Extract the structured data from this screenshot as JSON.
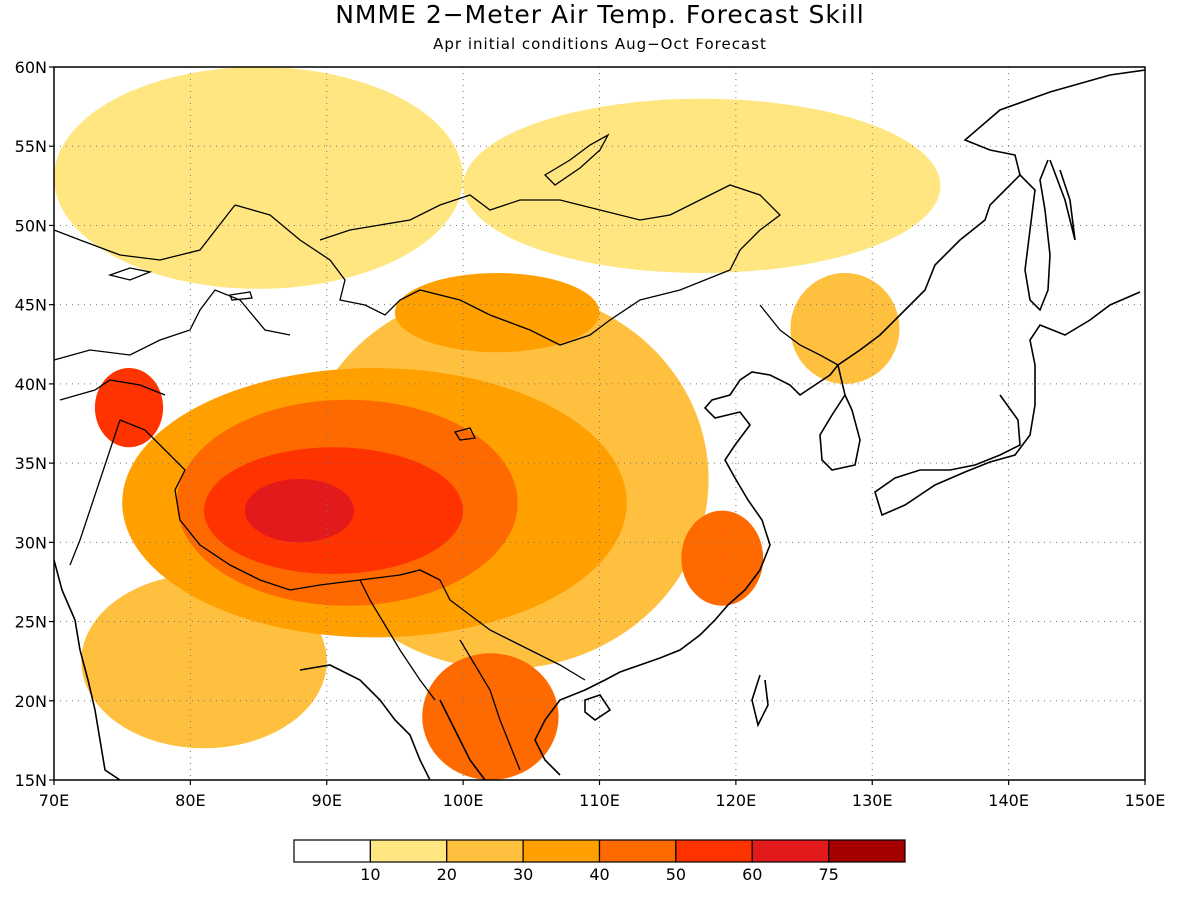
{
  "title": "NMME 2−Meter Air Temp. Forecast Skill",
  "subtitle": "Apr initial conditions  Aug−Oct Forecast",
  "map": {
    "lon_range": [
      70,
      150
    ],
    "lat_range": [
      15,
      60
    ],
    "lon_ticks": [
      "70E",
      "80E",
      "90E",
      "100E",
      "110E",
      "120E",
      "130E",
      "140E",
      "150E"
    ],
    "lat_ticks": [
      "15N",
      "20N",
      "25N",
      "30N",
      "35N",
      "40N",
      "45N",
      "50N",
      "55N",
      "60N"
    ],
    "grid": true
  },
  "colorbar": {
    "labels": [
      "10",
      "20",
      "30",
      "40",
      "50",
      "60",
      "75"
    ],
    "colors": [
      "#ffffff",
      "#ffe680",
      "#ffc040",
      "#ffa000",
      "#ff6a00",
      "#ff3300",
      "#e31a1c",
      "#a50000"
    ]
  },
  "skill_regions": [
    {
      "level": 1,
      "lon": [
        70,
        100
      ],
      "lat": [
        46,
        60
      ]
    },
    {
      "level": 1,
      "lon": [
        100,
        135
      ],
      "lat": [
        47,
        58
      ]
    },
    {
      "level": 2,
      "lon": [
        88,
        118
      ],
      "lat": [
        22,
        46
      ]
    },
    {
      "level": 2,
      "lon": [
        72,
        90
      ],
      "lat": [
        17,
        28
      ]
    },
    {
      "level": 3,
      "lon": [
        75,
        112
      ],
      "lat": [
        24,
        41
      ]
    },
    {
      "level": 3,
      "lon": [
        95,
        110
      ],
      "lat": [
        42,
        47
      ]
    },
    {
      "level": 4,
      "lon": [
        79,
        104
      ],
      "lat": [
        26,
        39
      ]
    },
    {
      "level": 4,
      "lon": [
        97,
        107
      ],
      "lat": [
        15,
        23
      ]
    },
    {
      "level": 5,
      "lon": [
        81,
        100
      ],
      "lat": [
        28,
        36
      ]
    },
    {
      "level": 6,
      "lon": [
        84,
        92
      ],
      "lat": [
        30,
        34
      ]
    },
    {
      "level": 5,
      "lon": [
        73,
        78
      ],
      "lat": [
        36,
        41
      ]
    },
    {
      "level": 4,
      "lon": [
        116,
        122
      ],
      "lat": [
        26,
        32
      ]
    },
    {
      "level": 2,
      "lon": [
        124,
        132
      ],
      "lat": [
        40,
        47
      ]
    }
  ]
}
